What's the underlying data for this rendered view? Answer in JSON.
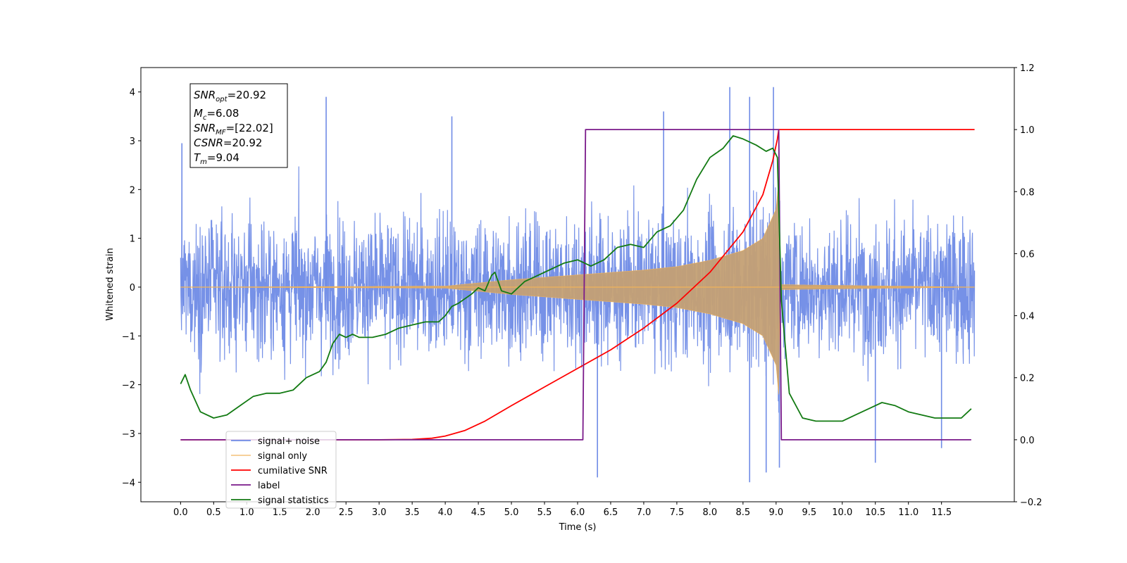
{
  "chart_data": {
    "type": "line",
    "xlabel": "Time (s)",
    "ylabel": "Whitened strain",
    "xlim": [
      -0.6,
      12.6
    ],
    "ylim": [
      -4.4,
      4.5
    ],
    "y2lim": [
      -0.2,
      1.2
    ],
    "x_ticks": [
      "0.0",
      "0.5",
      "1.0",
      "1.5",
      "2.0",
      "2.5",
      "3.0",
      "3.5",
      "4.0",
      "4.5",
      "5.0",
      "5.5",
      "6.0",
      "6.5",
      "7.0",
      "7.5",
      "8.0",
      "8.5",
      "9.0",
      "9.5",
      "10.0",
      "10.5",
      "11.0",
      "11.5"
    ],
    "y_ticks": [
      -4,
      -3,
      -2,
      -1,
      0,
      1,
      2,
      3,
      4
    ],
    "y2_ticks": [
      "−0.2",
      "0.0",
      "0.2",
      "0.4",
      "0.6",
      "0.8",
      "1.0",
      "1.2"
    ],
    "grid": false,
    "legend_position": "lower-left",
    "colors": {
      "noise": "#6f8be6",
      "signal": "#f0b25a",
      "signal_overlap": "#c4a074",
      "csnr": "#ff0000",
      "label": "#7a1a8a",
      "stat": "#127a12"
    },
    "annotation": {
      "snr_opt": {
        "base": "SNR",
        "sub": "opt",
        "value": "=20.92"
      },
      "mc": {
        "base": "M",
        "sub": "c",
        "value": "=6.08"
      },
      "snr_mf": {
        "base": "SNR",
        "sub": "MF",
        "value": "=[22.02]"
      },
      "csnr": {
        "base": "CSNR",
        "value": "=20.92"
      },
      "tm": {
        "base": "T",
        "sub": "m",
        "value": "=9.04"
      }
    },
    "series": [
      {
        "name": "signal+ noise",
        "axis": "left",
        "style": "dense noise trace",
        "x_range": [
          0,
          12
        ],
        "typical_envelope": [
          -2.3,
          2.3
        ],
        "peaks": [
          {
            "x": 0.02,
            "y": 2.95
          },
          {
            "x": 2.2,
            "y": 3.9
          },
          {
            "x": 4.1,
            "y": 3.5
          },
          {
            "x": 7.3,
            "y": 3.6
          },
          {
            "x": 8.3,
            "y": 4.1
          },
          {
            "x": 8.6,
            "y": 3.9
          },
          {
            "x": 8.96,
            "y": 4.1
          },
          {
            "x": 6.3,
            "y": -3.9
          },
          {
            "x": 8.6,
            "y": -4.0
          },
          {
            "x": 8.85,
            "y": -3.8
          },
          {
            "x": 9.05,
            "y": -3.7
          },
          {
            "x": 10.5,
            "y": -3.6
          },
          {
            "x": 11.5,
            "y": -3.3
          }
        ]
      },
      {
        "name": "signal only",
        "axis": "left",
        "style": "chirp (growing oscillation envelope)",
        "x": [
          0,
          4.0,
          5.0,
          6.0,
          7.0,
          7.5,
          8.0,
          8.5,
          8.8,
          9.0,
          9.04,
          9.06,
          12
        ],
        "envelope": [
          0,
          0.02,
          0.15,
          0.25,
          0.35,
          0.42,
          0.55,
          0.75,
          1.0,
          1.6,
          2.2,
          0.05,
          0
        ]
      },
      {
        "name": "cumilative SNR",
        "axis": "right",
        "x": [
          0,
          3.0,
          3.5,
          3.8,
          4.0,
          4.3,
          4.6,
          5.0,
          5.5,
          6.0,
          6.5,
          7.0,
          7.5,
          8.0,
          8.5,
          8.8,
          8.95,
          9.02,
          9.04,
          12
        ],
        "values": [
          0,
          0,
          0.001,
          0.005,
          0.012,
          0.03,
          0.06,
          0.11,
          0.17,
          0.23,
          0.29,
          0.36,
          0.44,
          0.54,
          0.67,
          0.79,
          0.9,
          0.97,
          1.0,
          1.0
        ]
      },
      {
        "name": "label",
        "axis": "right",
        "x": [
          0,
          6.08,
          6.12,
          9.04,
          9.08,
          11.95
        ],
        "values": [
          0,
          0,
          1.0,
          1.0,
          0,
          0
        ]
      },
      {
        "name": "signal statistics",
        "axis": "right",
        "x": [
          0,
          0.07,
          0.15,
          0.3,
          0.5,
          0.7,
          0.9,
          1.1,
          1.3,
          1.5,
          1.7,
          1.9,
          2.1,
          2.2,
          2.3,
          2.4,
          2.5,
          2.6,
          2.7,
          2.9,
          3.1,
          3.3,
          3.5,
          3.7,
          3.9,
          4.0,
          4.1,
          4.2,
          4.4,
          4.5,
          4.6,
          4.7,
          4.75,
          4.85,
          5.0,
          5.2,
          5.4,
          5.6,
          5.8,
          6.0,
          6.2,
          6.4,
          6.6,
          6.8,
          7.0,
          7.2,
          7.4,
          7.6,
          7.8,
          8.0,
          8.2,
          8.35,
          8.5,
          8.7,
          8.85,
          8.95,
          9.02,
          9.08,
          9.2,
          9.4,
          9.6,
          9.8,
          10.0,
          10.2,
          10.4,
          10.6,
          10.8,
          11.0,
          11.2,
          11.4,
          11.6,
          11.8,
          11.95
        ],
        "values": [
          0.18,
          0.21,
          0.16,
          0.09,
          0.07,
          0.08,
          0.11,
          0.14,
          0.15,
          0.15,
          0.16,
          0.2,
          0.22,
          0.25,
          0.31,
          0.34,
          0.33,
          0.34,
          0.33,
          0.33,
          0.34,
          0.36,
          0.37,
          0.38,
          0.38,
          0.4,
          0.43,
          0.44,
          0.47,
          0.49,
          0.48,
          0.53,
          0.54,
          0.48,
          0.47,
          0.51,
          0.53,
          0.55,
          0.57,
          0.58,
          0.56,
          0.58,
          0.62,
          0.63,
          0.62,
          0.67,
          0.69,
          0.74,
          0.84,
          0.91,
          0.94,
          0.98,
          0.97,
          0.95,
          0.93,
          0.94,
          0.91,
          0.45,
          0.15,
          0.07,
          0.06,
          0.06,
          0.06,
          0.08,
          0.1,
          0.12,
          0.11,
          0.09,
          0.08,
          0.07,
          0.07,
          0.07,
          0.1
        ]
      }
    ]
  }
}
